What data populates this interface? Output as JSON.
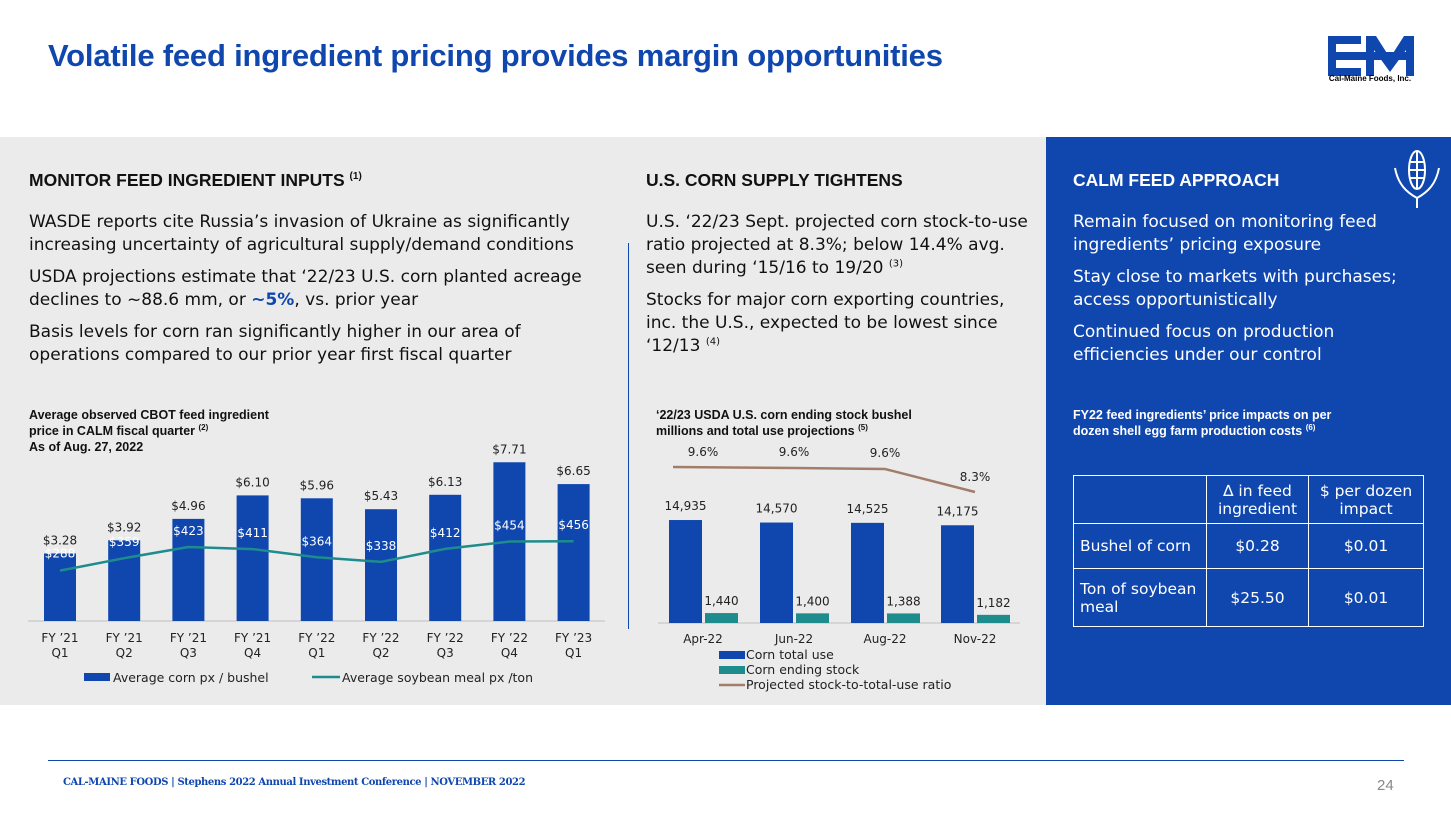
{
  "title": "Volatile feed ingredient pricing provides margin opportunities",
  "logo": {
    "text": "Cal-Maine Foods, Inc."
  },
  "left": {
    "heading": "MONITOR FEED INGREDIENT INPUTS",
    "heading_note": "(1)",
    "p1": "WASDE reports cite Russia’s invasion of Ukraine as significantly increasing uncertainty of agricultural supply/demand conditions",
    "p2_a": "USDA projections estimate that ‘22/23 U.S. corn planted acreage declines to ~88.6 mm, or ",
    "p2_hl": "~5%",
    "p2_b": ", vs. prior year",
    "p3": "Basis levels for corn ran significantly higher in our area of operations compared to our prior year first fiscal quarter",
    "chart_caption_1": "Average observed CBOT feed ingredient",
    "chart_caption_2": "price in CALM fiscal quarter",
    "chart_caption_note": "(2)",
    "chart_caption_3": "As of Aug. 27, 2022"
  },
  "middle": {
    "heading": "U.S. CORN SUPPLY TIGHTENS",
    "p1": "U.S. ‘22/23 Sept. projected corn stock-to-use ratio projected at 8.3%; below 14.4% avg. seen during ‘15/16 to 19/20",
    "p1_note": "(3)",
    "p2": "Stocks for major corn exporting countries, inc. the U.S., expected to be lowest since ‘12/13",
    "p2_note": "(4)",
    "chart_caption_1": "‘22/23 USDA U.S. corn ending stock bushel",
    "chart_caption_2": "millions and total use projections",
    "chart_caption_note": "(5)"
  },
  "right": {
    "heading": "CALM FEED APPROACH",
    "p1": "Remain focused on monitoring feed ingredients’ pricing exposure",
    "p2": "Stay close to markets with purchases; access opportunistically",
    "p3": "Continued focus on production efficiencies under our control",
    "caption_1": "FY22 feed ingredients’ price impacts on per",
    "caption_2": "dozen shell egg farm production costs",
    "caption_note": "(6)",
    "table": {
      "header": [
        "",
        "∆ in feed ingredient",
        "$ per dozen impact"
      ],
      "rows": [
        [
          "Bushel of corn",
          "$0.28",
          "$0.01"
        ],
        [
          "Ton of soybean meal",
          "$25.50",
          "$0.01"
        ]
      ]
    }
  },
  "chart_data": [
    {
      "type": "bar",
      "categories": [
        "FY ’21 Q1",
        "FY ’21 Q2",
        "FY ’21 Q3",
        "FY ’21 Q4",
        "FY ’22 Q1",
        "FY ’22 Q2",
        "FY ’22 Q3",
        "FY ’22 Q4",
        "FY ’23 Q1"
      ],
      "series": [
        {
          "name": "Average corn px / bushel",
          "kind": "bar",
          "values": [
            3.28,
            3.92,
            4.96,
            6.1,
            5.96,
            5.43,
            6.13,
            7.71,
            6.65
          ],
          "labels": [
            "$3.28",
            "$3.92",
            "$4.96",
            "$6.10",
            "$5.96",
            "$5.43",
            "$6.13",
            "$7.71",
            "$6.65"
          ],
          "color": "#0f47af"
        },
        {
          "name": "Average soybean meal px /ton",
          "kind": "line",
          "values": [
            288,
            359,
            423,
            411,
            364,
            338,
            412,
            454,
            456
          ],
          "labels": [
            "$288",
            "$359",
            "$423",
            "$411",
            "$364",
            "$338",
            "$412",
            "$454",
            "$456"
          ],
          "color": "#1e8c8c"
        }
      ],
      "ylim": [
        0,
        8.5
      ],
      "y2lim": [
        0,
        1000
      ],
      "legend": "bottom"
    },
    {
      "type": "bar",
      "categories": [
        "Apr-22",
        "Jun-22",
        "Aug-22",
        "Nov-22"
      ],
      "series": [
        {
          "name": "Corn total use",
          "kind": "bar",
          "values": [
            14935,
            14570,
            14525,
            14175
          ],
          "labels": [
            "14,935",
            "14,570",
            "14,525",
            "14,175"
          ],
          "color": "#0f47af"
        },
        {
          "name": "Corn ending stock",
          "kind": "bar",
          "values": [
            1440,
            1400,
            1388,
            1182
          ],
          "labels": [
            "1,440",
            "1,400",
            "1,388",
            "1,182"
          ],
          "color": "#1e8c8c"
        },
        {
          "name": "Projected stock-to-total-use ratio",
          "kind": "line",
          "values": [
            9.6,
            9.6,
            9.6,
            8.3
          ],
          "labels": [
            "9.6%",
            "9.6%",
            "9.6%",
            "8.3%"
          ],
          "color": "#a17e6a"
        }
      ],
      "ylim": [
        0,
        19000
      ],
      "legend": "bottom"
    }
  ],
  "footer": "CAL-MAINE FOODS | Stephens 2022 Annual Investment Conference | NOVEMBER 2022",
  "page_number": "24"
}
